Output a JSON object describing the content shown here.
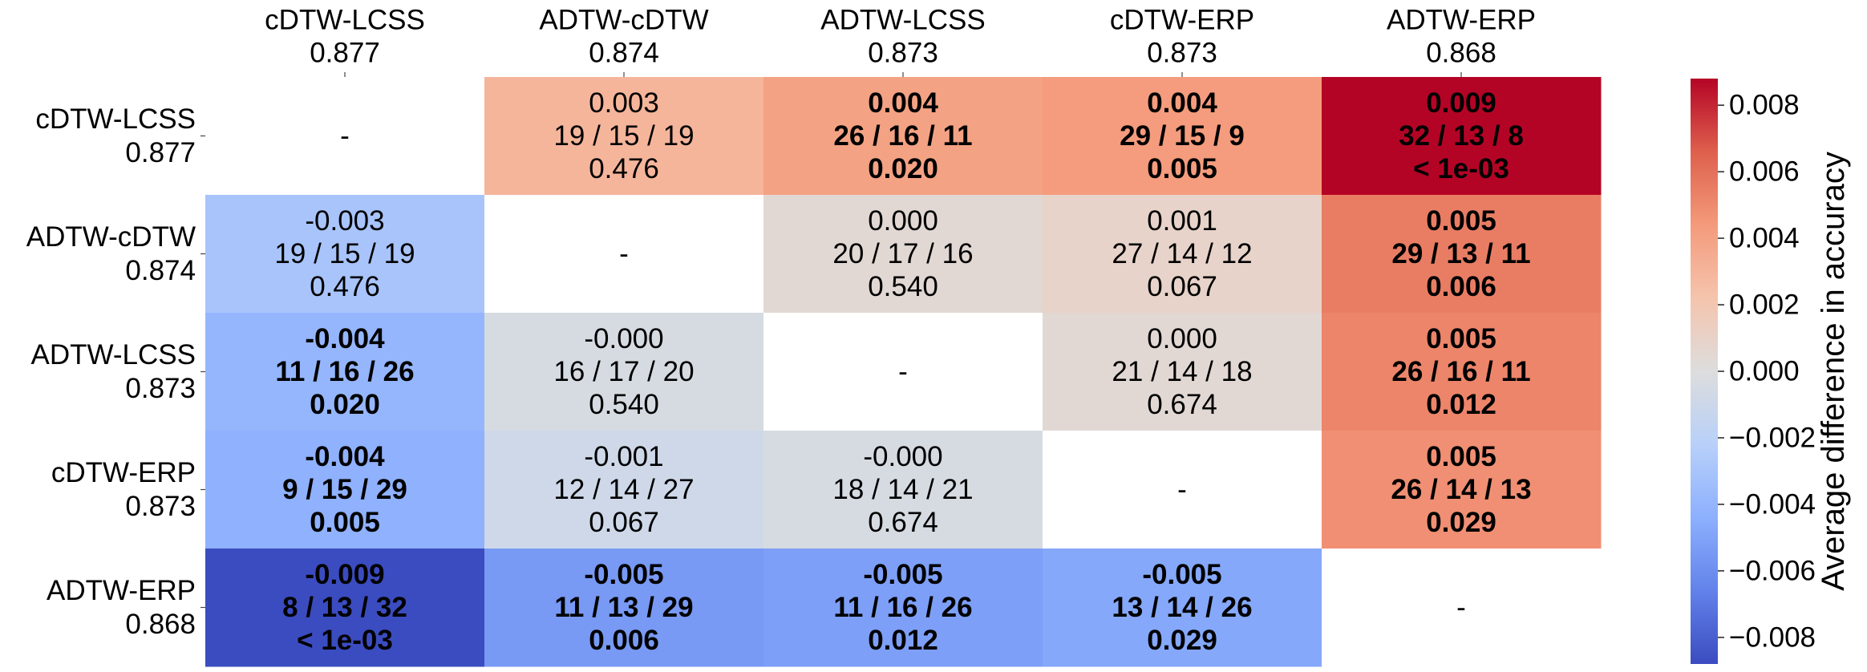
{
  "chart_data": {
    "type": "heatmap",
    "rows": [
      {
        "name": "cDTW-LCSS",
        "score": "0.877"
      },
      {
        "name": "ADTW-cDTW",
        "score": "0.874"
      },
      {
        "name": "ADTW-LCSS",
        "score": "0.873"
      },
      {
        "name": "cDTW-ERP",
        "score": "0.873"
      },
      {
        "name": "ADTW-ERP",
        "score": "0.868"
      }
    ],
    "columns": [
      {
        "name": "cDTW-LCSS",
        "score": "0.877"
      },
      {
        "name": "ADTW-cDTW",
        "score": "0.874"
      },
      {
        "name": "ADTW-LCSS",
        "score": "0.873"
      },
      {
        "name": "cDTW-ERP",
        "score": "0.873"
      },
      {
        "name": "ADTW-ERP",
        "score": "0.868"
      }
    ],
    "cells": [
      [
        {
          "text": [
            "-"
          ],
          "value": null,
          "bold": false
        },
        {
          "text": [
            "0.003",
            "19 / 15 / 19",
            "0.476"
          ],
          "value": 0.003,
          "bold": false
        },
        {
          "text": [
            "0.004",
            "26 / 16 / 11",
            "0.020"
          ],
          "value": 0.004,
          "bold": true
        },
        {
          "text": [
            "0.004",
            "29 / 15 / 9",
            "0.005"
          ],
          "value": 0.0043,
          "bold": true
        },
        {
          "text": [
            "0.009",
            "32 / 13 / 8",
            "< 1e-03"
          ],
          "value": 0.009,
          "bold": true
        }
      ],
      [
        {
          "text": [
            "-0.003",
            "19 / 15 / 19",
            "0.476"
          ],
          "value": -0.003,
          "bold": false
        },
        {
          "text": [
            "-"
          ],
          "value": null,
          "bold": false
        },
        {
          "text": [
            "0.000",
            "20 / 17 / 16",
            "0.540"
          ],
          "value": 0.0004,
          "bold": false
        },
        {
          "text": [
            "0.001",
            "27 / 14 / 12",
            "0.067"
          ],
          "value": 0.0009,
          "bold": false
        },
        {
          "text": [
            "0.005",
            "29 / 13 / 11",
            "0.006"
          ],
          "value": 0.0055,
          "bold": true
        }
      ],
      [
        {
          "text": [
            "-0.004",
            "11 / 16 / 26",
            "0.020"
          ],
          "value": -0.004,
          "bold": true
        },
        {
          "text": [
            "-0.000",
            "16 / 17 / 20",
            "0.540"
          ],
          "value": -0.0004,
          "bold": false
        },
        {
          "text": [
            "-"
          ],
          "value": null,
          "bold": false
        },
        {
          "text": [
            "0.000",
            "21 / 14 / 18",
            "0.674"
          ],
          "value": 0.0004,
          "bold": false
        },
        {
          "text": [
            "0.005",
            "26 / 16 / 11",
            "0.012"
          ],
          "value": 0.0052,
          "bold": true
        }
      ],
      [
        {
          "text": [
            "-0.004",
            "9 / 15 / 29",
            "0.005"
          ],
          "value": -0.0043,
          "bold": true
        },
        {
          "text": [
            "-0.001",
            "12 / 14 / 27",
            "0.067"
          ],
          "value": -0.0009,
          "bold": false
        },
        {
          "text": [
            "-0.000",
            "18 / 14 / 21",
            "0.674"
          ],
          "value": -0.0004,
          "bold": false
        },
        {
          "text": [
            "-"
          ],
          "value": null,
          "bold": false
        },
        {
          "text": [
            "0.005",
            "26 / 14 / 13",
            "0.029"
          ],
          "value": 0.0048,
          "bold": true
        }
      ],
      [
        {
          "text": [
            "-0.009",
            "8 / 13 / 32",
            "< 1e-03"
          ],
          "value": -0.009,
          "bold": true
        },
        {
          "text": [
            "-0.005",
            "11 / 13 / 29",
            "0.006"
          ],
          "value": -0.0055,
          "bold": true
        },
        {
          "text": [
            "-0.005",
            "11 / 16 / 26",
            "0.012"
          ],
          "value": -0.0052,
          "bold": true
        },
        {
          "text": [
            "-0.005",
            "13 / 14 / 26",
            "0.029"
          ],
          "value": -0.0048,
          "bold": true
        },
        {
          "text": [
            "-"
          ],
          "value": null,
          "bold": false
        }
      ]
    ],
    "colorbar": {
      "label": "Average difference in accuracy",
      "range": [
        -0.0088,
        0.0088
      ],
      "ticks": [
        -0.008,
        -0.006,
        -0.004,
        -0.002,
        0.0,
        0.002,
        0.004,
        0.006,
        0.008
      ],
      "tick_labels": [
        "−0.008",
        "−0.006",
        "−0.004",
        "−0.002",
        "0.000",
        "0.002",
        "0.004",
        "0.006",
        "0.008"
      ],
      "colormap": "coolwarm"
    },
    "colors": {
      "diagonal": "#ffffff",
      "cmap_low": "#3b4cc0",
      "cmap_mid": "#dddddd",
      "cmap_high": "#b40426"
    }
  }
}
